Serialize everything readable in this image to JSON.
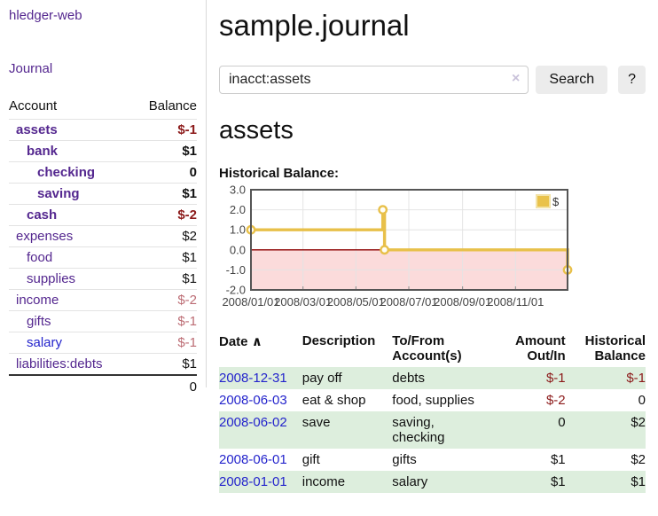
{
  "sidebar": {
    "app_title": "hledger-web",
    "nav": {
      "journal_label": "Journal"
    },
    "accounts_table": {
      "headers": {
        "account": "Account",
        "balance": "Balance"
      },
      "rows": [
        {
          "name": "assets",
          "indent": 1,
          "bold": true,
          "balance": "$-1",
          "balance_style": "neg-strong",
          "link_style": "purple"
        },
        {
          "name": "bank",
          "indent": 2,
          "bold": true,
          "balance": "$1",
          "balance_style": "pos",
          "link_style": "purple"
        },
        {
          "name": "checking",
          "indent": 3,
          "bold": true,
          "balance": "0",
          "balance_style": "pos",
          "link_style": "purple"
        },
        {
          "name": "saving",
          "indent": 3,
          "bold": true,
          "balance": "$1",
          "balance_style": "pos",
          "link_style": "purple"
        },
        {
          "name": "cash",
          "indent": 2,
          "bold": true,
          "balance": "$-2",
          "balance_style": "neg-strong",
          "link_style": "purple"
        },
        {
          "name": "expenses",
          "indent": 1,
          "bold": false,
          "balance": "$2",
          "balance_style": "pos",
          "link_style": "purple"
        },
        {
          "name": "food",
          "indent": 2,
          "bold": false,
          "balance": "$1",
          "balance_style": "pos",
          "link_style": "purple"
        },
        {
          "name": "supplies",
          "indent": 2,
          "bold": false,
          "balance": "$1",
          "balance_style": "pos",
          "link_style": "purple"
        },
        {
          "name": "income",
          "indent": 1,
          "bold": false,
          "balance": "$-2",
          "balance_style": "neg-soft",
          "link_style": "purple"
        },
        {
          "name": "gifts",
          "indent": 2,
          "bold": false,
          "balance": "$-1",
          "balance_style": "neg-soft",
          "link_style": "purple"
        },
        {
          "name": "salary",
          "indent": 2,
          "bold": false,
          "balance": "$-1",
          "balance_style": "neg-soft",
          "link_style": "blue"
        },
        {
          "name": "liabilities:debts",
          "indent": 1,
          "bold": false,
          "balance": "$1",
          "balance_style": "pos",
          "link_style": "purple"
        }
      ],
      "total": "0"
    }
  },
  "header": {
    "title": "sample.journal"
  },
  "search": {
    "value": "inacct:assets",
    "clear_icon": "×",
    "search_label": "Search",
    "help_label": "?"
  },
  "page": {
    "heading": "assets",
    "chart_label": "Historical Balance:"
  },
  "chart_data": {
    "type": "line",
    "title": "Historical Balance:",
    "legend": {
      "label": "$",
      "position": "top-right"
    },
    "line_color": "#e8c04a",
    "legend_fill": "#e9c24b",
    "negative_region_fill": "#fbdbdb",
    "zero_line_color": "#8c0000",
    "grid_color": "#e4e4e4",
    "border_color": "#555555",
    "label_color": "#444444",
    "grid": true,
    "ylim": [
      -2,
      3
    ],
    "y_ticks": [
      3.0,
      2.0,
      1.0,
      0.0,
      -1.0,
      -2.0
    ],
    "x_domain_days": [
      0,
      365
    ],
    "x_tick_days": [
      0,
      60,
      121,
      182,
      244,
      305
    ],
    "x_tick_labels": [
      "2008/01/01",
      "2008/03/01",
      "2008/05/01",
      "2008/07/01",
      "2008/09/01",
      "2008/11/01"
    ],
    "series": [
      {
        "name": "$",
        "step": true,
        "points": [
          {
            "date": "2008-01-01",
            "day": 0,
            "value": 1
          },
          {
            "date": "2008-06-01",
            "day": 152,
            "value": 2
          },
          {
            "date": "2008-06-03",
            "day": 154,
            "value": 0
          },
          {
            "date": "2008-12-31",
            "day": 365,
            "value": -1
          }
        ]
      }
    ]
  },
  "register": {
    "headers": {
      "date": "Date",
      "sort_icon": "∧",
      "description": "Description",
      "accounts": "To/From Account(s)",
      "amount": "Amount Out/In",
      "balance": "Historical Balance"
    },
    "rows": [
      {
        "date": "2008-12-31",
        "description": "pay off",
        "accounts": "debts",
        "amount": "$-1",
        "amount_style": "neg",
        "balance": "$-1",
        "balance_style": "neg"
      },
      {
        "date": "2008-06-03",
        "description": "eat & shop",
        "accounts": "food, supplies",
        "amount": "$-2",
        "amount_style": "neg",
        "balance": "0",
        "balance_style": "pos"
      },
      {
        "date": "2008-06-02",
        "description": "save",
        "accounts": "saving, checking",
        "amount": "0",
        "amount_style": "pos",
        "balance": "$2",
        "balance_style": "pos"
      },
      {
        "date": "2008-06-01",
        "description": "gift",
        "accounts": "gifts",
        "amount": "$1",
        "amount_style": "pos",
        "balance": "$2",
        "balance_style": "pos"
      },
      {
        "date": "2008-01-01",
        "description": "income",
        "accounts": "salary",
        "amount": "$1",
        "amount_style": "pos",
        "balance": "$1",
        "balance_style": "pos"
      }
    ]
  }
}
